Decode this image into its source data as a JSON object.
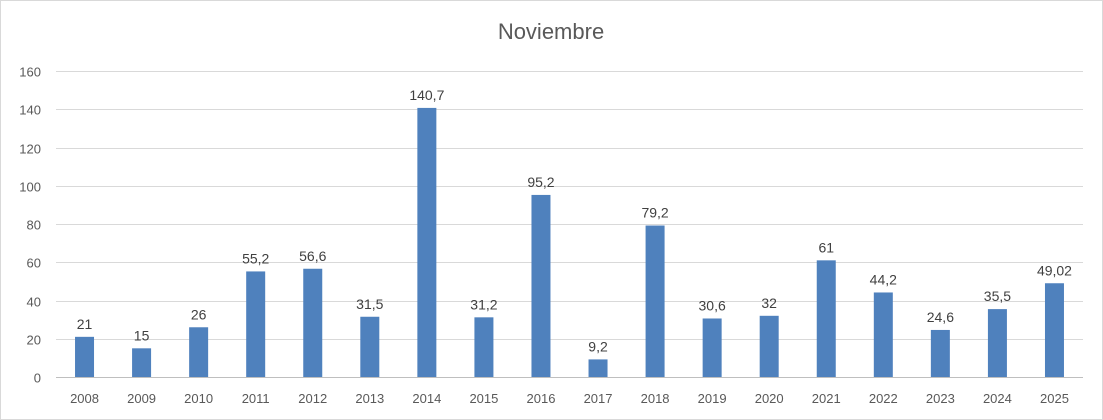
{
  "chart_data": {
    "type": "bar",
    "title": "Noviembre",
    "xlabel": "",
    "ylabel": "",
    "categories": [
      "2008",
      "2009",
      "2010",
      "2011",
      "2012",
      "2013",
      "2014",
      "2015",
      "2016",
      "2017",
      "2018",
      "2019",
      "2020",
      "2021",
      "2022",
      "2023",
      "2024",
      "2025"
    ],
    "values": [
      21,
      15,
      26,
      55.2,
      56.6,
      31.5,
      140.7,
      31.2,
      95.2,
      9.2,
      79.2,
      30.6,
      32,
      61,
      44.2,
      24.6,
      35.5,
      49.02
    ],
    "data_labels": [
      "21",
      "15",
      "26",
      "55,2",
      "56,6",
      "31,5",
      "140,7",
      "31,2",
      "95,2",
      "9,2",
      "79,2",
      "30,6",
      "32",
      "61",
      "44,2",
      "24,6",
      "35,5",
      "49,02"
    ],
    "yticks": [
      "0",
      "20",
      "40",
      "60",
      "80",
      "100",
      "120",
      "140",
      "160"
    ],
    "ylim": [
      0,
      160
    ],
    "grid": true,
    "legend": "none",
    "bar_color": "#4f81bd"
  }
}
